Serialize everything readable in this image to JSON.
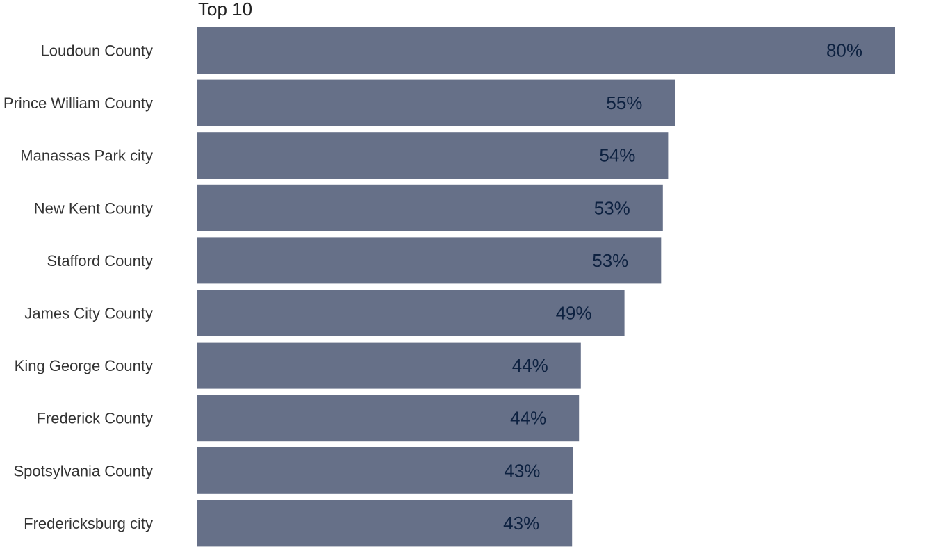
{
  "chart_data": {
    "type": "bar",
    "orientation": "horizontal",
    "title": "Top 10",
    "xlabel": "",
    "ylabel": "",
    "categories": [
      "Loudoun County",
      "Prince William County",
      "Manassas Park city",
      "New Kent County",
      "Stafford County",
      "James City County",
      "King George County",
      "Frederick County",
      "Spotsylvania County",
      "Fredericksburg city"
    ],
    "values": [
      80,
      54.8,
      54,
      53.4,
      53.2,
      49,
      44,
      43.8,
      43.1,
      43
    ],
    "value_labels": [
      "80%",
      "55%",
      "54%",
      "53%",
      "53%",
      "49%",
      "44%",
      "44%",
      "43%",
      "43%"
    ],
    "xlim": [
      0,
      80
    ],
    "grid": false,
    "legend": "none",
    "colors": {
      "bar": "#667088",
      "value_label": "#0d2140",
      "category_label": "#333333",
      "title": "#222222"
    }
  }
}
